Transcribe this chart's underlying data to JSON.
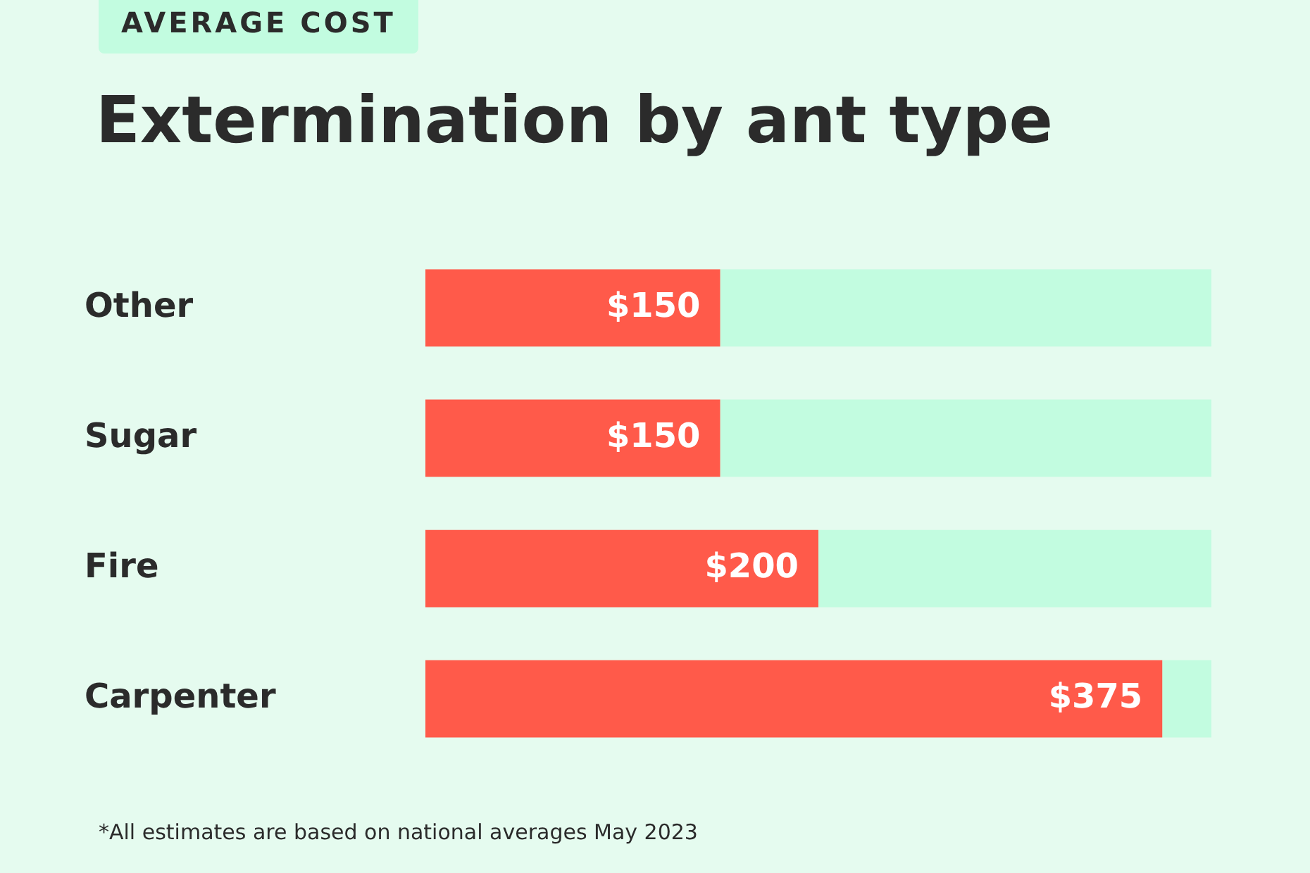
{
  "chart_data": {
    "type": "bar",
    "orientation": "horizontal",
    "stacked": true,
    "subtitle": "AVERAGE COST",
    "title": "Extermination by ant type",
    "categories": [
      "Other",
      "Sugar",
      "Fire",
      "Carpenter"
    ],
    "series": [
      {
        "color": "#ff5a4a",
        "values": [
          150,
          150,
          200,
          375
        ],
        "value_labels": [
          "$150",
          "$150",
          "$200",
          "$375"
        ]
      },
      {
        "color": "#c2fce0",
        "values": [
          250,
          250,
          200,
          25
        ]
      }
    ],
    "xlim": [
      0,
      400
    ],
    "tick_labels": "y",
    "legend": false,
    "annotations": [
      "*All estimates are based on national averages May 2023"
    ]
  }
}
